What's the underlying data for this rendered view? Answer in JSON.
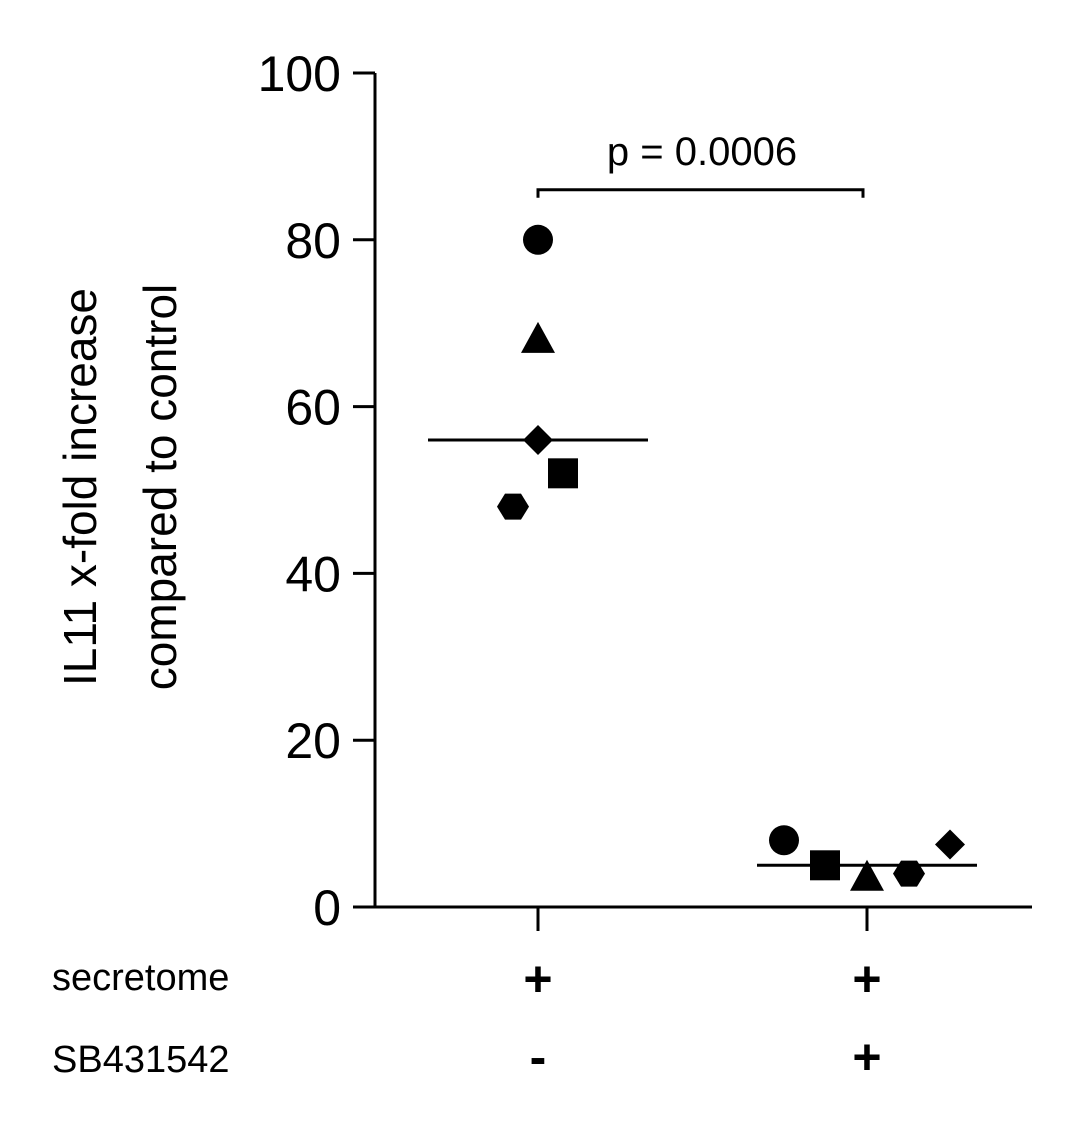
{
  "chart_data": {
    "type": "scatter",
    "title": "",
    "xlabel": "",
    "ylabel_lines": [
      "IL11 x-fold increase",
      "compared to control"
    ],
    "ylim": [
      0,
      100
    ],
    "yticks": [
      0,
      20,
      40,
      60,
      80,
      100
    ],
    "ytick_labels": [
      "0",
      "20",
      "40",
      "60",
      "80",
      "100"
    ],
    "grid": false,
    "row_labels": [
      "secretome",
      "SB431542"
    ],
    "groups": [
      {
        "conditions": [
          "+",
          "-"
        ],
        "median": 56,
        "points": [
          {
            "marker": "circle",
            "value": 80
          },
          {
            "marker": "triangle",
            "value": 68
          },
          {
            "marker": "diamond",
            "value": 56
          },
          {
            "marker": "square",
            "value": 52
          },
          {
            "marker": "hexagon",
            "value": 48
          }
        ]
      },
      {
        "conditions": [
          "+",
          "+"
        ],
        "median": 5,
        "points": [
          {
            "marker": "circle",
            "value": 8
          },
          {
            "marker": "square",
            "value": 5
          },
          {
            "marker": "triangle",
            "value": 3.5
          },
          {
            "marker": "hexagon",
            "value": 4
          },
          {
            "marker": "diamond",
            "value": 7.5
          }
        ]
      }
    ],
    "annotation": {
      "text": "p = 0.0006",
      "bracket_value": 86
    }
  }
}
